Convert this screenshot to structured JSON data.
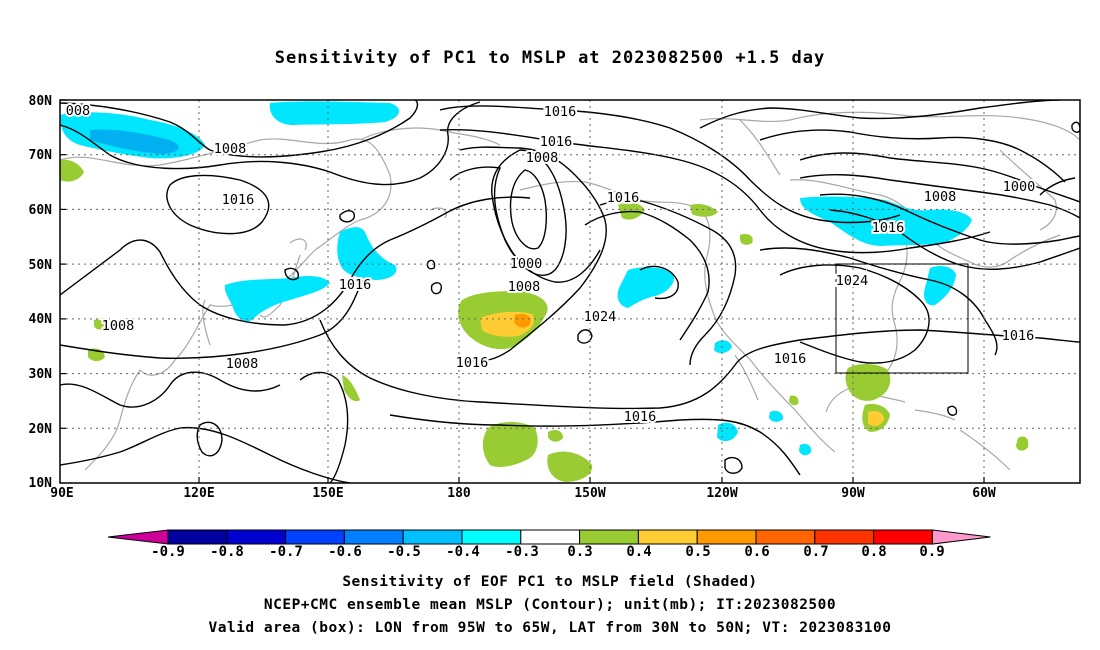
{
  "title": "Sensitivity of PC1 to MSLP at 2023082500 +1.5 day",
  "map": {
    "lat_labels": [
      "80N",
      "70N",
      "60N",
      "50N",
      "40N",
      "30N",
      "20N",
      "10N"
    ],
    "lon_labels": [
      "90E",
      "120E",
      "150E",
      "180",
      "150W",
      "120W",
      "90W",
      "60W"
    ],
    "contour_labels": [
      "008",
      "1008",
      "1016",
      "1016",
      "1016",
      "1008",
      "1008",
      "1008",
      "1000",
      "1008",
      "1016",
      "1016",
      "1024",
      "1016",
      "1016",
      "1024",
      "1016",
      "1008",
      "1000",
      "1016"
    ],
    "valid_box": {
      "lon_from": "95W",
      "lon_to": "65W",
      "lat_from": "30N",
      "lat_to": "50N"
    }
  },
  "colorbar": {
    "labels": [
      "-0.9",
      "-0.8",
      "-0.7",
      "-0.6",
      "-0.5",
      "-0.4",
      "-0.3",
      "0.3",
      "0.4",
      "0.5",
      "0.6",
      "0.7",
      "0.8",
      "0.9"
    ],
    "colors": [
      "#cc0099",
      "#0000a0",
      "#0000d0",
      "#0040ff",
      "#0080ff",
      "#00c0ff",
      "#00ffff",
      "#ffffff",
      "#99cc33",
      "#ffcc33",
      "#ff9900",
      "#ff6600",
      "#ff3300",
      "#ff0000",
      "#ff99cc"
    ]
  },
  "captions": [
    "Sensitivity of EOF PC1 to MSLP field (Shaded)",
    "NCEP+CMC ensemble mean MSLP (Contour); unit(mb); IT:2023082500",
    "Valid area (box): LON from 95W to 65W, LAT from 30N to 50N; VT: 2023083100"
  ]
}
